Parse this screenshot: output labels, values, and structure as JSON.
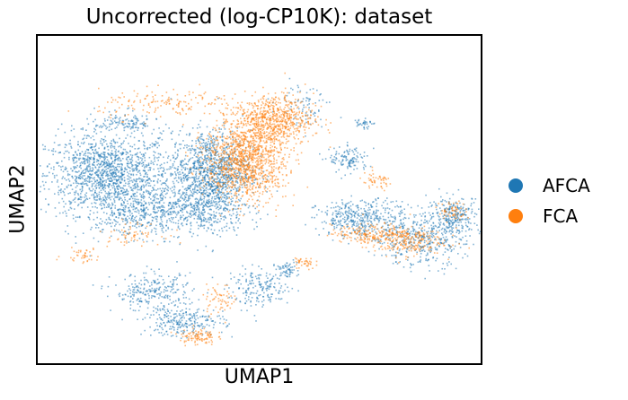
{
  "chart_data": {
    "type": "scatter",
    "title": "Uncorrected (log-CP10K): dataset",
    "xlabel": "UMAP1",
    "ylabel": "UMAP2",
    "grid": false,
    "ticks": false,
    "legend_placement": "right",
    "series": [
      {
        "name": "AFCA",
        "color": "#1f77b4",
        "clusters": [
          {
            "x": 1.6,
            "y": 5.2,
            "spread": [
              0.7,
              0.55
            ],
            "n": 1400
          },
          {
            "x": 3.9,
            "y": 5.3,
            "spread": [
              0.45,
              0.55
            ],
            "n": 1100
          },
          {
            "x": 3.6,
            "y": 4.2,
            "spread": [
              0.55,
              0.35
            ],
            "n": 450
          },
          {
            "x": 2.2,
            "y": 4.2,
            "spread": [
              0.55,
              0.35
            ],
            "n": 350
          },
          {
            "x": 2.0,
            "y": 6.6,
            "spread": [
              0.35,
              0.15
            ],
            "n": 120
          },
          {
            "x": 7.3,
            "y": 4.0,
            "spread": [
              0.5,
              0.25
            ],
            "n": 420
          },
          {
            "x": 8.6,
            "y": 3.4,
            "spread": [
              0.5,
              0.35
            ],
            "n": 380
          },
          {
            "x": 9.35,
            "y": 4.1,
            "spread": [
              0.3,
              0.25
            ],
            "n": 260
          },
          {
            "x": 7.0,
            "y": 5.6,
            "spread": [
              0.22,
              0.18
            ],
            "n": 120
          },
          {
            "x": 2.6,
            "y": 2.0,
            "spread": [
              0.45,
              0.25
            ],
            "n": 250
          },
          {
            "x": 3.3,
            "y": 1.2,
            "spread": [
              0.45,
              0.2
            ],
            "n": 250
          },
          {
            "x": 5.0,
            "y": 2.1,
            "spread": [
              0.35,
              0.25
            ],
            "n": 180
          },
          {
            "x": 5.6,
            "y": 2.6,
            "spread": [
              0.12,
              0.12
            ],
            "n": 60
          },
          {
            "x": 6.0,
            "y": 7.1,
            "spread": [
              0.3,
              0.3
            ],
            "n": 80
          },
          {
            "x": 7.3,
            "y": 6.6,
            "spread": [
              0.1,
              0.08
            ],
            "n": 35
          }
        ]
      },
      {
        "name": "FCA",
        "color": "#ff7f0e",
        "clusters": [
          {
            "x": 4.7,
            "y": 5.6,
            "spread": [
              0.45,
              0.55
            ],
            "n": 1200
          },
          {
            "x": 5.3,
            "y": 6.7,
            "spread": [
              0.45,
              0.35
            ],
            "n": 650
          },
          {
            "x": 8.2,
            "y": 3.4,
            "spread": [
              0.45,
              0.2
            ],
            "n": 260
          },
          {
            "x": 7.5,
            "y": 3.6,
            "spread": [
              0.45,
              0.12
            ],
            "n": 160
          },
          {
            "x": 9.3,
            "y": 4.2,
            "spread": [
              0.15,
              0.15
            ],
            "n": 60
          },
          {
            "x": 3.6,
            "y": 0.8,
            "spread": [
              0.2,
              0.12
            ],
            "n": 100
          },
          {
            "x": 4.1,
            "y": 1.8,
            "spread": [
              0.2,
              0.2
            ],
            "n": 60
          },
          {
            "x": 3.0,
            "y": 7.1,
            "spread": [
              0.8,
              0.2
            ],
            "n": 150
          },
          {
            "x": 7.6,
            "y": 5.0,
            "spread": [
              0.2,
              0.12
            ],
            "n": 50
          },
          {
            "x": 6.0,
            "y": 2.8,
            "spread": [
              0.12,
              0.1
            ],
            "n": 40
          },
          {
            "x": 1.0,
            "y": 3.0,
            "spread": [
              0.2,
              0.1
            ],
            "n": 40
          },
          {
            "x": 2.1,
            "y": 3.6,
            "spread": [
              0.35,
              0.15
            ],
            "n": 60
          }
        ]
      }
    ],
    "xlim": [
      0,
      10
    ],
    "ylim": [
      0,
      9
    ]
  },
  "legend": [
    {
      "label": "AFCA",
      "color": "#1f77b4"
    },
    {
      "label": "FCA",
      "color": "#ff7f0e"
    }
  ]
}
